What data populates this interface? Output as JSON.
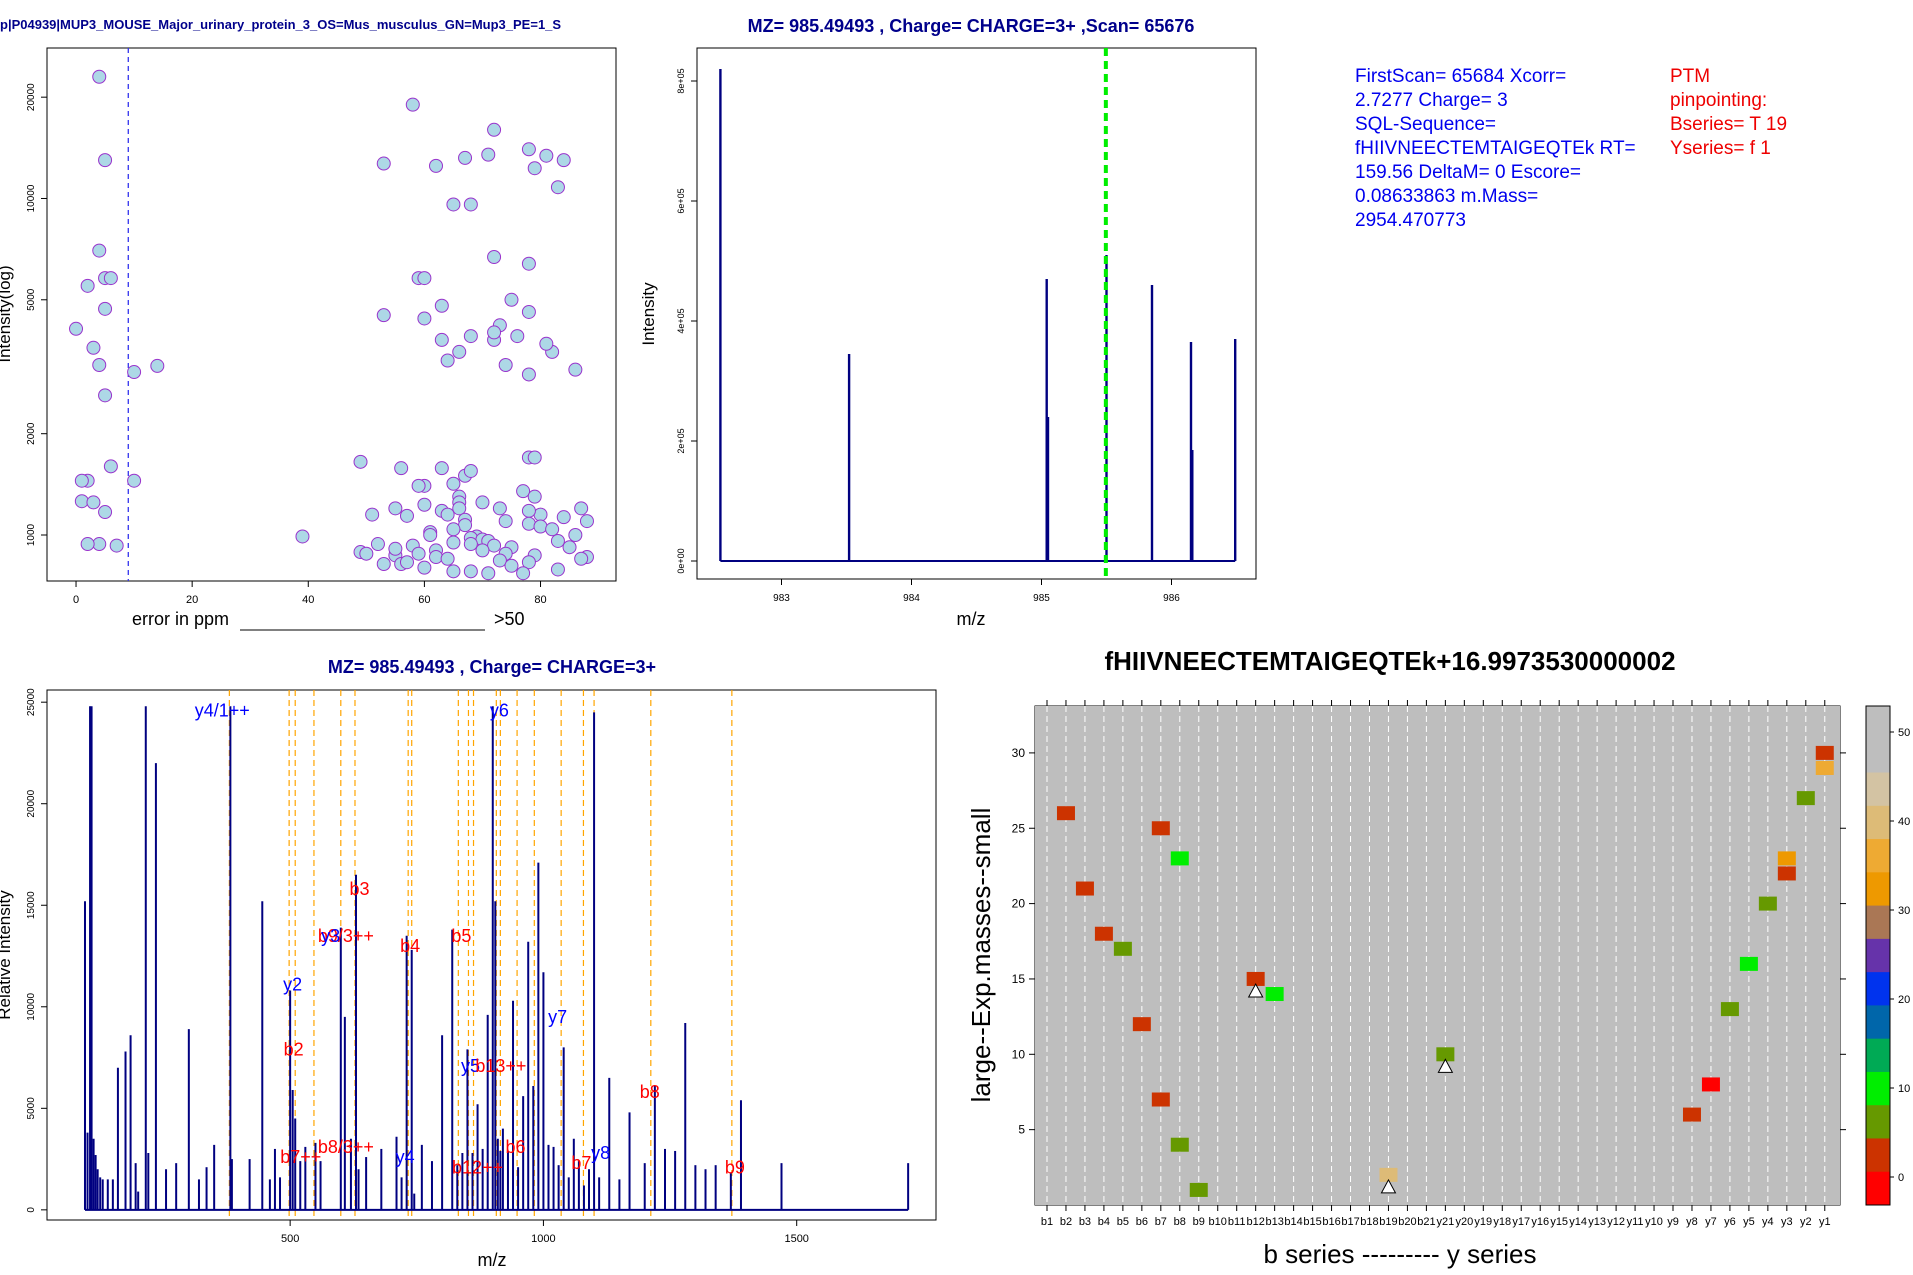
{
  "panels": {
    "error_plot": {
      "title": "p|P04939|MUP3_MOUSE_Major_urinary_protein_3_OS=Mus_musculus_GN=Mup3_PE=1_S",
      "xlabel": "error in ppm",
      "xlabel_suffix": ">50",
      "ylabel": "Intensity(log)",
      "xticks": [
        "0",
        "20",
        "40",
        "60",
        "80"
      ],
      "yticks": [
        "1000",
        "2000",
        "5000",
        "10000",
        "20000"
      ],
      "colors": {
        "fill": "#add8e6",
        "stroke": "#9933cc",
        "vline": "#3333ee"
      }
    },
    "precursor_plot": {
      "title": "MZ= 985.49493 , Charge= CHARGE=3+ ,Scan= 65676",
      "xlabel": "m/z",
      "ylabel": "Intensity",
      "xticks": [
        "983",
        "984",
        "985",
        "986"
      ],
      "yticks": [
        "0e+00",
        "2e+05",
        "4e+05",
        "6e+05",
        "8e+05"
      ],
      "colors": {
        "line": "#000080",
        "marker": "#00ee00"
      }
    },
    "info_text": {
      "lines": [
        "FirstScan= 65684 Xcorr=",
        "2.7277 Charge= 3",
        "SQL-Sequence=",
        "fHIIVNEECTEMTAIGEQTEk RT=",
        "159.56 DeltaM= 0 Escore=",
        "0.08633863 m.Mass=",
        "2954.470773"
      ],
      "ptm_lines": [
        "PTM",
        "pinpointing:",
        "Bseries= T 19",
        "Yseries= f 1"
      ]
    },
    "msms_plot": {
      "title": "MZ= 985.49493 , Charge= CHARGE=3+",
      "xlabel": "m/z",
      "ylabel": "Relative Intensity",
      "xticks": [
        "500",
        "1000",
        "1500"
      ],
      "yticks": [
        "0",
        "5000",
        "10000",
        "15000",
        "20000",
        "25000"
      ],
      "colors": {
        "peak": "#000080",
        "guide": "#ffa500",
        "b_ion": "#ff0000",
        "y_ion": "#0000ff"
      }
    },
    "heatmap": {
      "title": "fHIIVNEECTEMTAIGEQTEk+16.9973530000002",
      "xlabel": "b series --------- y series",
      "ylabel": "large--Exp.masses--small",
      "xticks": [
        "b1",
        "b2",
        "b3",
        "b4",
        "b5",
        "b6",
        "b7",
        "b8",
        "b9",
        "b10",
        "b11",
        "b12",
        "b13",
        "b14",
        "b15",
        "b16",
        "b17",
        "b18",
        "b19",
        "b20",
        "b21",
        "y21",
        "y20",
        "y19",
        "y18",
        "y17",
        "y16",
        "y15",
        "y14",
        "y13",
        "y12",
        "y11",
        "y10",
        "y9",
        "y8",
        "y7",
        "y6",
        "y5",
        "y4",
        "y3",
        "y2",
        "y1"
      ],
      "yticks": [
        "5",
        "10",
        "15",
        "20",
        "25",
        "30"
      ],
      "legend_ticks": [
        "0",
        "10",
        "20",
        "30",
        "40",
        "50"
      ],
      "legend_colors": [
        "#ff0000",
        "#cc3300",
        "#669900",
        "#00ee00",
        "#00aa55",
        "#0066aa",
        "#0033ee",
        "#6633aa",
        "#aa7755",
        "#ee9900",
        "#eeaa33",
        "#ddbb77",
        "#d3c3a3",
        "#bebebe",
        "#bebebe"
      ]
    }
  },
  "chart_data": [
    {
      "type": "scatter",
      "title": "p|P04939|MUP3_MOUSE_Major_urinary_protein_3_OS=Mus_musculus_GN=Mup3_PE=1_S",
      "xlabel": "error in ppm",
      "ylabel": "Intensity(log)",
      "xlim": [
        -5,
        93
      ],
      "ylim": [
        730,
        28000
      ],
      "log_y": true,
      "vline_x": 9,
      "x": [
        4,
        5,
        4,
        5,
        6,
        2,
        5,
        0,
        3,
        4,
        2,
        14,
        10,
        5,
        1,
        6,
        10,
        1,
        3,
        5,
        4,
        7,
        2,
        39,
        58,
        53,
        62,
        72,
        67,
        71,
        78,
        79,
        81,
        84,
        83,
        68,
        65,
        72,
        78,
        59,
        60,
        63,
        75,
        78,
        73,
        60,
        68,
        63,
        72,
        64,
        74,
        78,
        86,
        82,
        66,
        72,
        53,
        76,
        81,
        78,
        79,
        49,
        56,
        60,
        63,
        59,
        67,
        68,
        65,
        77,
        79,
        60,
        66,
        70,
        73,
        80,
        55,
        66,
        78,
        84,
        87,
        51,
        63,
        66,
        88,
        57,
        64,
        67,
        74,
        78,
        67,
        80,
        65,
        61,
        82,
        86,
        61,
        69,
        68,
        70,
        83,
        65,
        71,
        52,
        58,
        68,
        72,
        75,
        85,
        62,
        70,
        49,
        74,
        50,
        55,
        59,
        79,
        62,
        88,
        64,
        73,
        78,
        56,
        53,
        75,
        60,
        83,
        65,
        68,
        71,
        77,
        87,
        55,
        57
      ],
      "y": [
        23000,
        13000,
        7000,
        5800,
        5800,
        5500,
        4700,
        4100,
        3600,
        3200,
        1450,
        3180,
        3050,
        2600,
        1450,
        1600,
        1450,
        1260,
        1250,
        1170,
        940,
        930,
        940,
        990,
        19000,
        12700,
        12500,
        16000,
        13200,
        13500,
        14000,
        12300,
        13400,
        13000,
        10800,
        9600,
        9600,
        6700,
        6400,
        5800,
        5800,
        4800,
        5000,
        4600,
        4200,
        4400,
        3900,
        3800,
        3800,
        3300,
        3200,
        3000,
        3100,
        3500,
        3500,
        4000,
        4500,
        3900,
        3700,
        1700,
        1700,
        1650,
        1580,
        1400,
        1580,
        1400,
        1500,
        1550,
        1420,
        1350,
        1300,
        1230,
        1300,
        1250,
        1200,
        1150,
        1200,
        1250,
        1180,
        1130,
        1200,
        1150,
        1180,
        1200,
        1100,
        1140,
        1150,
        1110,
        1100,
        1080,
        1070,
        1060,
        1040,
        1020,
        1040,
        1000,
        1000,
        990,
        980,
        970,
        960,
        950,
        960,
        940,
        930,
        940,
        930,
        920,
        920,
        900,
        900,
        890,
        880,
        880,
        870,
        880,
        870,
        860,
        860,
        850,
        840,
        830,
        820,
        820,
        810,
        800,
        790,
        780,
        780,
        770,
        770,
        850,
        910,
        830
      ]
    },
    {
      "type": "line",
      "title": "MZ= 985.49493 , Charge= CHARGE=3+ ,Scan= 65676",
      "xlabel": "m/z",
      "ylabel": "Intensity",
      "xlim": [
        982.35,
        986.65
      ],
      "ylim": [
        0,
        880000
      ],
      "marker_x": 985.495,
      "x": [
        982.53,
        983.52,
        985.04,
        985.05,
        985.5,
        985.85,
        986.15,
        986.16,
        986.49
      ],
      "y": [
        820000,
        345000,
        470000,
        240000,
        510000,
        460000,
        365000,
        185000,
        370000
      ]
    },
    {
      "type": "bar",
      "title": "MZ= 985.49493 , Charge= CHARGE=3+",
      "xlabel": "m/z",
      "ylabel": "Relative Intensity",
      "xlim": [
        20,
        1775
      ],
      "ylim": [
        -500,
        25600
      ],
      "x": [
        95,
        100,
        105,
        108,
        112,
        116,
        120,
        125,
        130,
        140,
        150,
        160,
        175,
        185,
        195,
        200,
        215,
        220,
        235,
        255,
        275,
        300,
        320,
        335,
        350,
        382,
        385,
        420,
        445,
        460,
        470,
        480,
        500,
        505,
        510,
        520,
        530,
        550,
        560,
        600,
        608,
        620,
        630,
        635,
        650,
        680,
        710,
        720,
        730,
        740,
        745,
        760,
        780,
        800,
        820,
        830,
        840,
        850,
        860,
        870,
        880,
        890,
        900,
        905,
        910,
        915,
        920,
        930,
        940,
        950,
        960,
        970,
        980,
        990,
        1000,
        1010,
        1020,
        1030,
        1040,
        1050,
        1060,
        1070,
        1080,
        1090,
        1100,
        1110,
        1130,
        1150,
        1170,
        1200,
        1220,
        1240,
        1260,
        1280,
        1300,
        1320,
        1340,
        1370,
        1390,
        1470,
        1720
      ],
      "y": [
        15200,
        3800,
        24800,
        24800,
        3500,
        2700,
        2000,
        1600,
        1500,
        1500,
        1500,
        7000,
        7800,
        8600,
        2300,
        900,
        24800,
        2800,
        22000,
        2000,
        2300,
        8900,
        1500,
        2100,
        3200,
        24800,
        2500,
        2500,
        15200,
        1500,
        3000,
        1600,
        10800,
        5900,
        4500,
        2400,
        3100,
        3300,
        2400,
        13900,
        9500,
        3500,
        16500,
        2000,
        2600,
        3000,
        3600,
        1600,
        13500,
        12800,
        800,
        3200,
        2400,
        8600,
        13800,
        2200,
        2800,
        7900,
        2800,
        5200,
        3000,
        9600,
        24800,
        15200,
        3500,
        2900,
        4000,
        2900,
        10300,
        2100,
        5600,
        13200,
        6100,
        17100,
        11700,
        3200,
        3100,
        2200,
        8000,
        1600,
        3500,
        2400,
        1200,
        2000,
        24500,
        1600,
        6500,
        1500,
        4800,
        2300,
        6100,
        3000,
        2900,
        9200,
        2200,
        2000,
        2200,
        1800,
        5400,
        2300,
        2300
      ],
      "guides": [
        380,
        498,
        510,
        547,
        600,
        628,
        733,
        740,
        832,
        852,
        862,
        907,
        915,
        948,
        982,
        1035,
        1079,
        1100,
        1212,
        1372
      ],
      "labels": [
        {
          "text": "y4/1++",
          "x": 366,
          "y": 24300,
          "series": "y"
        },
        {
          "text": "y6",
          "x": 913,
          "y": 24300,
          "series": "y"
        },
        {
          "text": "b3",
          "x": 637,
          "y": 15500,
          "series": "b"
        },
        {
          "text": "b9/3++",
          "x": 610,
          "y": 13200,
          "series": "b"
        },
        {
          "text": "b4",
          "x": 737,
          "y": 12700,
          "series": "b"
        },
        {
          "text": "b5",
          "x": 838,
          "y": 13200,
          "series": "b"
        },
        {
          "text": "y3",
          "x": 580,
          "y": 13200,
          "series": "y"
        },
        {
          "text": "y2",
          "x": 505,
          "y": 10800,
          "series": "y"
        },
        {
          "text": "y7",
          "x": 1028,
          "y": 9200,
          "series": "y"
        },
        {
          "text": "b2",
          "x": 507,
          "y": 7600,
          "series": "b"
        },
        {
          "text": "y5",
          "x": 856,
          "y": 6800,
          "series": "y"
        },
        {
          "text": "b13++",
          "x": 916,
          "y": 6800,
          "series": "b"
        },
        {
          "text": "b8",
          "x": 1210,
          "y": 5500,
          "series": "b"
        },
        {
          "text": "b8/3++",
          "x": 610,
          "y": 2800,
          "series": "b"
        },
        {
          "text": "b7++",
          "x": 521,
          "y": 2300,
          "series": "b"
        },
        {
          "text": "y4",
          "x": 727,
          "y": 2300,
          "series": "y"
        },
        {
          "text": "b6",
          "x": 945,
          "y": 2800,
          "series": "b"
        },
        {
          "text": "b12++",
          "x": 870,
          "y": 1800,
          "series": "b"
        },
        {
          "text": "b7",
          "x": 1075,
          "y": 2000,
          "series": "b"
        },
        {
          "text": "y8",
          "x": 1113,
          "y": 2500,
          "series": "y"
        },
        {
          "text": "b9",
          "x": 1378,
          "y": 1800,
          "series": "b"
        }
      ]
    },
    {
      "type": "heatmap",
      "title": "fHIIVNEECTEMTAIGEQTEk+16.9973530000002",
      "xlabel": "b series --------- y series",
      "ylabel": "large--Exp.masses--small",
      "xlim": [
        0.5,
        42.5
      ],
      "ylim": [
        0,
        33.5
      ],
      "cells": [
        {
          "col": 2,
          "row": 26,
          "color": "#cc3300"
        },
        {
          "col": 3,
          "row": 21,
          "color": "#cc3300"
        },
        {
          "col": 4,
          "row": 18,
          "color": "#cc3300"
        },
        {
          "col": 5,
          "row": 17,
          "color": "#669900"
        },
        {
          "col": 6,
          "row": 12,
          "color": "#cc3300"
        },
        {
          "col": 7,
          "row": 25,
          "color": "#cc3300"
        },
        {
          "col": 7,
          "row": 7,
          "color": "#cc3300"
        },
        {
          "col": 8,
          "row": 23,
          "color": "#00ee00"
        },
        {
          "col": 8,
          "row": 4,
          "color": "#669900"
        },
        {
          "col": 9,
          "row": 1,
          "color": "#669900"
        },
        {
          "col": 12,
          "row": 15,
          "color": "#cc3300"
        },
        {
          "col": 13,
          "row": 14,
          "color": "#00ee00"
        },
        {
          "col": 19,
          "row": 2,
          "color": "#ddbb77"
        },
        {
          "col": 22,
          "row": 10,
          "color": "#669900"
        },
        {
          "col": 35,
          "row": 6,
          "color": "#cc3300"
        },
        {
          "col": 36,
          "row": 8,
          "color": "#ff0000"
        },
        {
          "col": 37,
          "row": 13,
          "color": "#669900"
        },
        {
          "col": 38,
          "row": 16,
          "color": "#00ee00"
        },
        {
          "col": 39,
          "row": 20,
          "color": "#669900"
        },
        {
          "col": 40,
          "row": 22,
          "color": "#cc3300"
        },
        {
          "col": 40,
          "row": 23,
          "color": "#ee9900"
        },
        {
          "col": 41,
          "row": 27,
          "color": "#669900"
        },
        {
          "col": 42,
          "row": 29,
          "color": "#eeaa33"
        },
        {
          "col": 42,
          "row": 30,
          "color": "#cc3300"
        }
      ],
      "triangles": [
        {
          "col": 12,
          "row": 14.2
        },
        {
          "col": 19,
          "row": 1.2
        },
        {
          "col": 22,
          "row": 9.2
        }
      ]
    }
  ]
}
